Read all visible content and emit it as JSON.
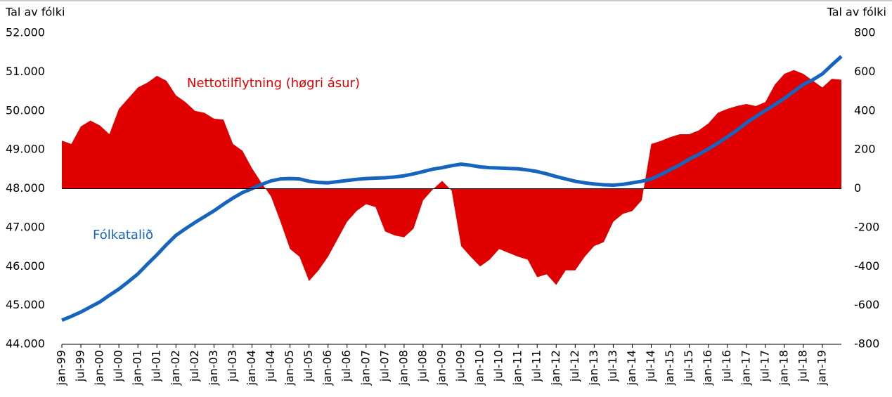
{
  "chart_data": {
    "type": "area_line",
    "y_label": "Tal av fólki",
    "y2_label": "Tal av fólki",
    "annotations": [
      "Nettotilflytning (høgri ásur)",
      "Fólkatalið"
    ],
    "categories": [
      "jan-99",
      null,
      "jul-99",
      null,
      "jan-00",
      null,
      "jul-00",
      null,
      "jan-01",
      null,
      "jul-01",
      null,
      "jan-02",
      null,
      "jul-02",
      null,
      "jan-03",
      null,
      "jul-03",
      null,
      "jan-04",
      null,
      "jul-04",
      null,
      "jan-05",
      null,
      "jul-05",
      null,
      "jan-06",
      null,
      "jul-06",
      null,
      "jan-07",
      null,
      "jul-07",
      null,
      "jan-08",
      null,
      "jul-08",
      null,
      "jan-09",
      null,
      "jul-09",
      null,
      "jan-10",
      null,
      "jul-10",
      null,
      "jan-11",
      null,
      "jul-11",
      null,
      "jan-12",
      null,
      "jul-12",
      null,
      "jan-13",
      null,
      "jul-13",
      null,
      "jan-14",
      null,
      "jul-14",
      null,
      "jan-15",
      null,
      "jul-15",
      null,
      "jan-16",
      null,
      "jul-16",
      null,
      "jan-17",
      null,
      "jul-17",
      null,
      "jan-18",
      null,
      "jul-18",
      null,
      "jan-19",
      null,
      null
    ],
    "series": [
      {
        "name": "Nettotilflytning (høgri ásur)",
        "color": "#e00000",
        "axis": "y2",
        "kind": "area",
        "values": [
          247,
          230,
          320,
          350,
          325,
          280,
          410,
          465,
          520,
          545,
          580,
          555,
          480,
          445,
          400,
          390,
          360,
          355,
          230,
          195,
          105,
          30,
          -40,
          -170,
          -310,
          -350,
          -475,
          -420,
          -350,
          -260,
          -170,
          -115,
          -80,
          -95,
          -220,
          -240,
          -250,
          -205,
          -60,
          -5,
          40,
          -10,
          -295,
          -350,
          -400,
          -365,
          -310,
          -330,
          -350,
          -365,
          -455,
          -440,
          -495,
          -420,
          -420,
          -350,
          -295,
          -275,
          -170,
          -130,
          -115,
          -60,
          230,
          245,
          265,
          280,
          280,
          300,
          335,
          390,
          410,
          425,
          435,
          425,
          445,
          535,
          590,
          610,
          590,
          555,
          520,
          565,
          560
        ]
      },
      {
        "name": "Fólkatalið",
        "color": "#1565c0",
        "axis": "y",
        "kind": "line",
        "values": [
          44620,
          44720,
          44830,
          44960,
          45090,
          45260,
          45420,
          45610,
          45810,
          46060,
          46300,
          46560,
          46800,
          46970,
          47130,
          47280,
          47430,
          47600,
          47760,
          47900,
          48000,
          48110,
          48200,
          48250,
          48260,
          48250,
          48190,
          48160,
          48150,
          48180,
          48210,
          48240,
          48260,
          48270,
          48280,
          48300,
          48330,
          48380,
          48440,
          48500,
          48540,
          48590,
          48630,
          48600,
          48560,
          48540,
          48530,
          48520,
          48510,
          48480,
          48440,
          48380,
          48310,
          48250,
          48190,
          48150,
          48120,
          48100,
          48090,
          48110,
          48150,
          48190,
          48250,
          48360,
          48490,
          48610,
          48760,
          48880,
          49020,
          49170,
          49330,
          49500,
          49690,
          49850,
          50010,
          50160,
          50320,
          50500,
          50680,
          50800,
          50950,
          51180,
          51400
        ]
      }
    ],
    "ylim": [
      44000,
      52000
    ],
    "yticks": [
      {
        "value": 44000,
        "label": "44.000"
      },
      {
        "value": 45000,
        "label": "45.000"
      },
      {
        "value": 46000,
        "label": "46.000"
      },
      {
        "value": 47000,
        "label": "47.000"
      },
      {
        "value": 48000,
        "label": "48.000"
      },
      {
        "value": 49000,
        "label": "49.000"
      },
      {
        "value": 50000,
        "label": "50.000"
      },
      {
        "value": 51000,
        "label": "51.000"
      },
      {
        "value": 52000,
        "label": "52.000"
      }
    ],
    "y2lim": [
      -800,
      800
    ],
    "y2ticks": [
      -800,
      -600,
      -400,
      -200,
      0,
      200,
      400,
      600,
      800
    ]
  }
}
